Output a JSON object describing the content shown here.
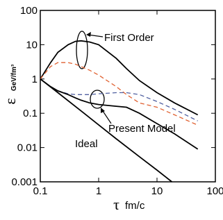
{
  "chart_data": {
    "type": "line",
    "xlabel": {
      "symbol": "τ",
      "unit": "fm/c"
    },
    "ylabel": {
      "symbol": "ε",
      "unit": "GeV/fm³"
    },
    "xscale": "log",
    "yscale": "log",
    "xlim": [
      0.1,
      100
    ],
    "ylim": [
      0.001,
      100
    ],
    "xticks": [
      0.1,
      1,
      10,
      100
    ],
    "yticks": [
      0.001,
      0.01,
      0.1,
      1,
      10,
      100
    ],
    "series": [
      {
        "name": "First Order",
        "color": "#000000",
        "dash": false,
        "x": [
          0.1,
          0.15,
          0.2,
          0.3,
          0.4,
          0.5,
          0.7,
          1,
          2,
          3,
          5,
          10,
          20,
          50
        ],
        "values": [
          1,
          3,
          6,
          10,
          12.5,
          13,
          12,
          10,
          4,
          2,
          0.9,
          0.4,
          0.2,
          0.09
        ]
      },
      {
        "color": "#e06030",
        "dash": true,
        "x": [
          0.1,
          0.15,
          0.2,
          0.3,
          0.4,
          0.5,
          0.7,
          1,
          2,
          3,
          5,
          10,
          20,
          50
        ],
        "values": [
          1,
          2.3,
          3,
          3,
          2.7,
          2.3,
          1.8,
          1.3,
          0.6,
          0.35,
          0.2,
          0.15,
          0.09,
          0.045
        ]
      },
      {
        "color": "#5060a0",
        "dash": true,
        "x": [
          0.1,
          0.15,
          0.2,
          0.3,
          0.4,
          0.5,
          0.7,
          1,
          2,
          3,
          5,
          10,
          20,
          50
        ],
        "values": [
          1,
          0.6,
          0.45,
          0.37,
          0.35,
          0.35,
          0.35,
          0.37,
          0.4,
          0.4,
          0.35,
          0.22,
          0.13,
          0.06
        ]
      },
      {
        "name": "Present Model",
        "color": "#000000",
        "dash": false,
        "x": [
          0.1,
          0.15,
          0.2,
          0.3,
          0.4,
          0.5,
          0.7,
          1,
          2,
          3,
          5,
          10,
          20,
          50
        ],
        "values": [
          1,
          0.6,
          0.45,
          0.35,
          0.28,
          0.24,
          0.2,
          0.18,
          0.16,
          0.15,
          0.1,
          0.05,
          0.025,
          0.009
        ]
      },
      {
        "name": "Ideal",
        "color": "#000000",
        "dash": false,
        "x": [
          0.1,
          0.2,
          0.5,
          1,
          2,
          5,
          10,
          18
        ],
        "values": [
          1,
          0.4,
          0.117,
          0.046,
          0.018,
          0.0054,
          0.0022,
          0.001
        ]
      }
    ]
  }
}
